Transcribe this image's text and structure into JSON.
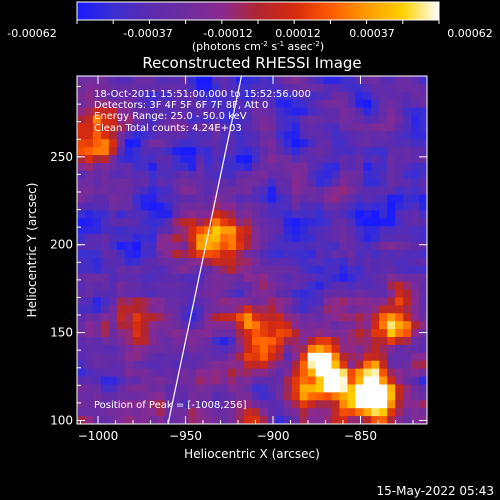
{
  "colorbar": {
    "min": -0.00062,
    "max": 0.00062,
    "ticks": [
      "-0.00062",
      "-0.00037",
      "-0.00012",
      "0.00012",
      "0.00037",
      "0.00062"
    ],
    "unit_parts": [
      "(photons cm",
      "-2",
      " s",
      "-1",
      " asec",
      "-2",
      ")"
    ],
    "colors": [
      "#1a1aff",
      "#3b2fd0",
      "#5a2bb0",
      "#6e2ca0",
      "#8a2a90",
      "#b0262f",
      "#d52a10",
      "#ff5a00",
      "#ff9a00",
      "#ffd000",
      "#ffffff"
    ]
  },
  "title": "Reconstructed RHESSI Image",
  "info": {
    "line1": "18-Oct-2011 15:51:00.000 to 15:52:56.000",
    "line2": "Detectors: 3F 4F 5F 6F 7F 8F, Att 0",
    "line3": "Energy Range: 25.0 - 50.0 keV",
    "line4": "Clean    Total counts: 4.24E+03",
    "peak": "Position of Peak = [-1008,256]"
  },
  "footer": {
    "date": "15-May-2022 05:43"
  },
  "chart_data": {
    "type": "heatmap",
    "title": "Reconstructed RHESSI Image",
    "xlabel": "Heliocentric X (arcsec)",
    "ylabel": "Heliocentric Y (arcsec)",
    "xlim": [
      -1012,
      -812
    ],
    "ylim": [
      98,
      296
    ],
    "x_ticks": [
      -1000,
      -950,
      -900,
      -850
    ],
    "y_ticks": [
      100,
      150,
      200,
      250
    ],
    "limb_line": [
      [
        -960,
        98
      ],
      [
        -918,
        296
      ]
    ],
    "peak": [
      -1008,
      256
    ],
    "bright_regions": [
      {
        "x": -1006,
        "y": 262,
        "level": 0.9
      },
      {
        "x": -935,
        "y": 205,
        "level": 0.8
      },
      {
        "x": -910,
        "y": 150,
        "level": 0.9
      },
      {
        "x": -870,
        "y": 128,
        "level": 1.0
      },
      {
        "x": -845,
        "y": 115,
        "level": 0.95
      },
      {
        "x": -980,
        "y": 160,
        "level": 0.6
      },
      {
        "x": -830,
        "y": 160,
        "level": 0.7
      }
    ]
  }
}
